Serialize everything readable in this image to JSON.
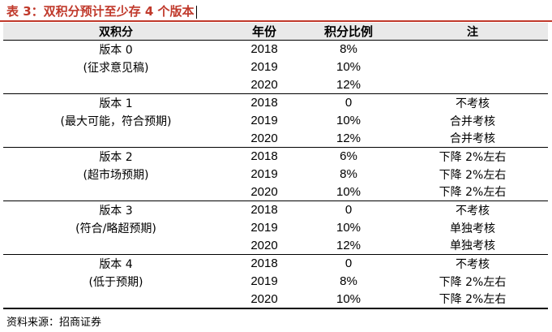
{
  "title": "表 3：双积分预计至少存 4 个版本",
  "table": {
    "headers": [
      "双积分",
      "年份",
      "积分比例",
      "注"
    ],
    "groups": [
      {
        "name": "版本 0",
        "desc": "(征求意见稿)",
        "rows": [
          {
            "year": "2018",
            "ratio": "8%",
            "note": ""
          },
          {
            "year": "2019",
            "ratio": "10%",
            "note": ""
          },
          {
            "year": "2020",
            "ratio": "12%",
            "note": ""
          }
        ]
      },
      {
        "name": "版本 1",
        "desc": "(最大可能，符合预期)",
        "rows": [
          {
            "year": "2018",
            "ratio": "0",
            "note": "不考核"
          },
          {
            "year": "2019",
            "ratio": "10%",
            "note": "合并考核"
          },
          {
            "year": "2020",
            "ratio": "12%",
            "note": "合并考核"
          }
        ]
      },
      {
        "name": "版本 2",
        "desc": "(超市场预期)",
        "rows": [
          {
            "year": "2018",
            "ratio": "6%",
            "note": "下降 2%左右"
          },
          {
            "year": "2019",
            "ratio": "8%",
            "note": "下降 2%左右"
          },
          {
            "year": "2020",
            "ratio": "10%",
            "note": "下降 2%左右"
          }
        ]
      },
      {
        "name": "版本 3",
        "desc": "(符合/略超预期)",
        "rows": [
          {
            "year": "2018",
            "ratio": "0",
            "note": "不考核"
          },
          {
            "year": "2019",
            "ratio": "10%",
            "note": "单独考核"
          },
          {
            "year": "2020",
            "ratio": "12%",
            "note": "单独考核"
          }
        ]
      },
      {
        "name": "版本 4",
        "desc": "(低于预期)",
        "rows": [
          {
            "year": "2018",
            "ratio": "0",
            "note": "不考核"
          },
          {
            "year": "2019",
            "ratio": "8%",
            "note": "下降 2%左右"
          },
          {
            "year": "2020",
            "ratio": "10%",
            "note": "下降 2%左右"
          }
        ]
      }
    ]
  },
  "source": "资料来源：招商证券"
}
